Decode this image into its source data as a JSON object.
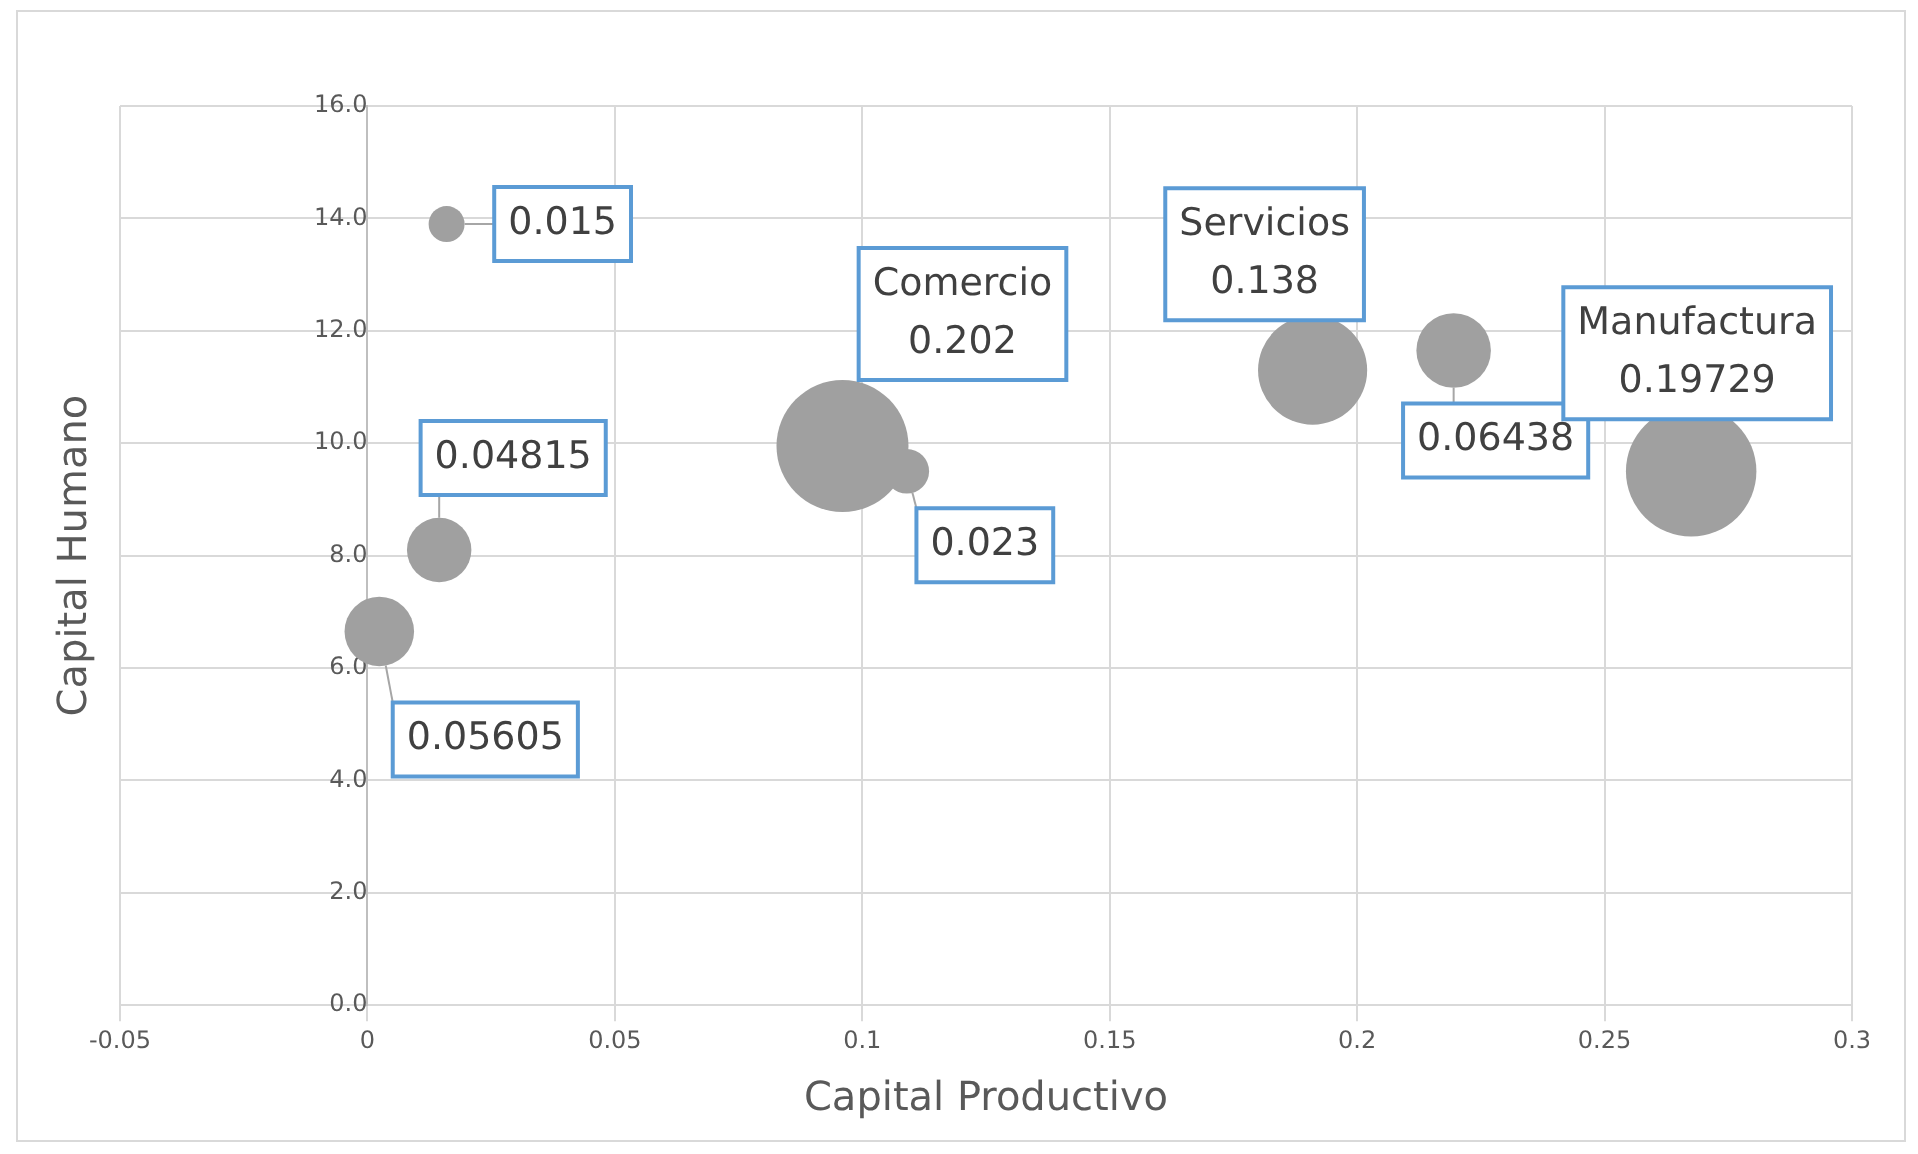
{
  "chart_data": {
    "type": "bubble",
    "xlabel": "Capital Productivo",
    "ylabel": "Capital Humano",
    "series": [
      {
        "color": "#a0a0a0",
        "x": [
          0.016,
          0.0145,
          0.0024,
          0.109,
          0.2195
        ],
        "values": [
          13.9,
          8.1,
          6.65,
          9.5,
          11.65
        ],
        "sizes": [
          0.015,
          0.04815,
          0.05605,
          0.023,
          0.06438
        ],
        "value_labels": [
          "0.015",
          "0.04815",
          "0.05605",
          "0.023",
          "0.06438"
        ]
      },
      {
        "name": "Comercio",
        "color": "#a0a0a0",
        "x": [
          0.096
        ],
        "values": [
          9.95
        ],
        "sizes": [
          0.202
        ],
        "value_labels": [
          "0.202"
        ]
      },
      {
        "name": "Servicios",
        "color": "#a0a0a0",
        "x": [
          0.191
        ],
        "values": [
          11.3
        ],
        "sizes": [
          0.138
        ],
        "value_labels": [
          "0.138"
        ]
      },
      {
        "name": "Manufactura",
        "color": "#a0a0a0",
        "x": [
          0.2675
        ],
        "values": [
          9.5
        ],
        "sizes": [
          0.19729
        ],
        "value_labels": [
          "0.19729"
        ]
      }
    ],
    "xlim": [
      -0.05,
      0.3
    ],
    "xticks": [
      -0.05,
      0,
      0.05,
      0.1,
      0.15,
      0.2,
      0.25,
      0.3
    ],
    "ylim": [
      0,
      16
    ],
    "yticks": [
      {
        "value": 0,
        "label": "0.0"
      },
      {
        "value": 2,
        "label": "2.0"
      },
      {
        "value": 4,
        "label": "4.0"
      },
      {
        "value": 6,
        "label": "6.0"
      },
      {
        "value": 8,
        "label": "8.0"
      },
      {
        "value": 10,
        "label": "10.0"
      },
      {
        "value": 12,
        "label": "12.0"
      },
      {
        "value": 14,
        "label": "14.0"
      },
      {
        "value": 16,
        "label": "16.0"
      }
    ],
    "grid": true,
    "legend": false
  }
}
